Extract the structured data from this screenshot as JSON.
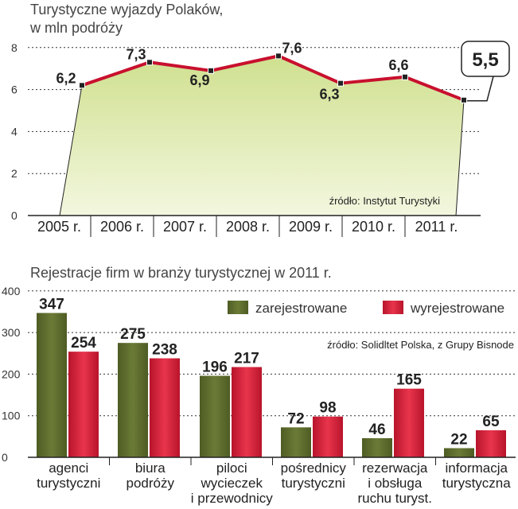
{
  "chart_data": [
    {
      "type": "area",
      "title": "Turystyczne wyjazdy Polaków,",
      "subtitle": "w mln podróży",
      "categories": [
        "2005 r.",
        "2006 r.",
        "2007 r.",
        "2008 r.",
        "2009 r.",
        "2010 r.",
        "2011 r."
      ],
      "values": [
        6.2,
        7.3,
        6.9,
        7.6,
        6.3,
        6.6,
        5.5
      ],
      "value_labels": [
        "6,2",
        "7,3",
        "6,9",
        "7,6",
        "6,3",
        "6,6",
        "5,5"
      ],
      "yticks": [
        "0",
        "2",
        "4",
        "6",
        "8"
      ],
      "ylim": [
        0,
        8
      ],
      "grid": true,
      "source": "źródło: Instytut Turystyki",
      "colors": {
        "line": "#c8102e",
        "fill_top": "#cfe08f",
        "fill_bottom": "#f3f7df",
        "marker": "#222222"
      }
    },
    {
      "type": "bar",
      "title": "Rejestracje firm w branży turystycznej w 2011 r.",
      "categories": [
        [
          "agenci",
          "turystyczni"
        ],
        [
          "biura",
          "podróży"
        ],
        [
          "piloci",
          "wycieczek",
          "i przewodnicy"
        ],
        [
          "pośrednicy",
          "turystyczni"
        ],
        [
          "rezerwacja",
          "i obsługa",
          "ruchu turyst."
        ],
        [
          "informacja",
          "turystyczna"
        ]
      ],
      "series": [
        {
          "name": "zarejestrowane",
          "values": [
            347,
            275,
            196,
            72,
            46,
            22
          ],
          "color": "#5b6a2c"
        },
        {
          "name": "wyrejestrowane",
          "values": [
            254,
            238,
            217,
            98,
            165,
            65
          ],
          "color": "#d4213a"
        }
      ],
      "yticks": [
        "0",
        "100",
        "200",
        "300",
        "400"
      ],
      "ylim": [
        0,
        400
      ],
      "grid": true,
      "legend_position": "top-right",
      "source": "źródło: Solidltet Polska, z Grupy Bisnode"
    }
  ]
}
